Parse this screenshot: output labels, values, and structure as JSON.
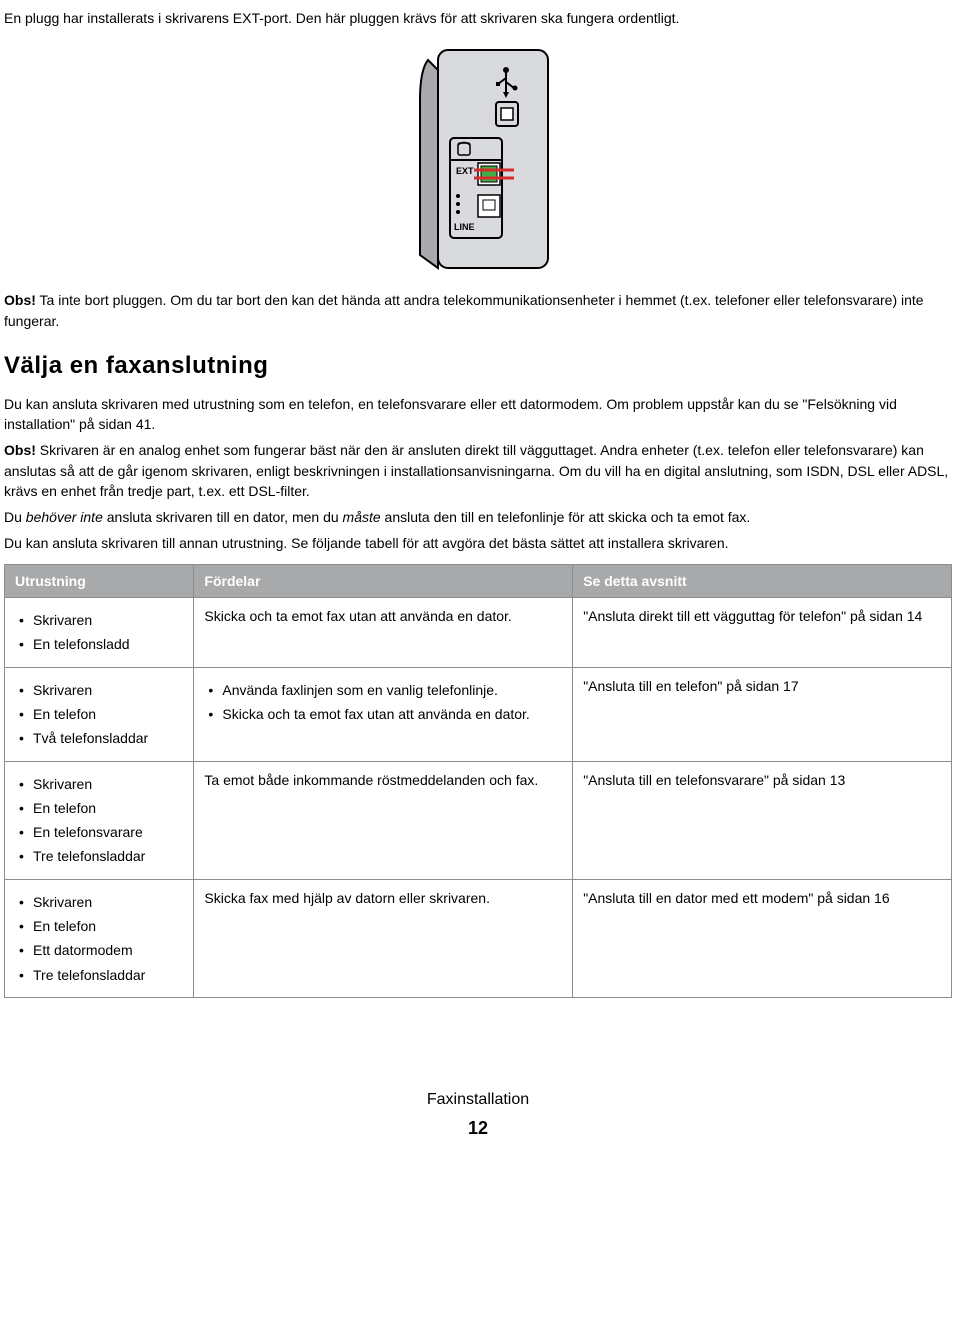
{
  "intro_text": "En plugg har installerats i skrivarens EXT-port. Den här pluggen krävs för att skrivaren ska fungera ordentligt.",
  "note1_prefix": "Obs!",
  "note1_text": " Ta inte bort pluggen. Om du tar bort den kan det hända att andra telekommunikationsenheter i hemmet (t.ex. telefoner eller telefonsvarare) inte fungerar.",
  "heading": "Välja en faxanslutning",
  "para1": "Du kan ansluta skrivaren med utrustning som en telefon, en telefonsvarare eller ett datormodem. Om problem uppstår kan du se \"Felsökning vid installation\" på sidan 41.",
  "note2_prefix": "Obs!",
  "note2_text": " Skrivaren är en analog enhet som fungerar bäst när den är ansluten direkt till vägguttaget. Andra enheter (t.ex. telefon eller telefonsvarare) kan anslutas så att de går igenom skrivaren, enligt beskrivningen i installationsanvisningarna. Om du vill ha en digital anslutning, som ISDN, DSL eller ADSL, krävs en enhet från tredje part, t.ex. ett DSL-filter.",
  "para2_pre": "Du ",
  "para2_em1": "behöver inte",
  "para2_mid": " ansluta skrivaren till en dator, men du ",
  "para2_em2": "måste",
  "para2_post": " ansluta den till en telefonlinje för att skicka och ta emot fax.",
  "para3": "Du kan ansluta skrivaren till annan utrustning. Se följande tabell för att avgöra det bästa sättet att installera skrivaren.",
  "table": {
    "headers": [
      "Utrustning",
      "Fördelar",
      "Se detta avsnitt"
    ],
    "rows": [
      {
        "equipment": [
          "Skrivaren",
          "En telefonsladd"
        ],
        "benefits_text": "Skicka och ta emot fax utan att använda en dator.",
        "benefits_list": null,
        "section": "\"Ansluta direkt till ett vägguttag för telefon\" på sidan 14"
      },
      {
        "equipment": [
          "Skrivaren",
          "En telefon",
          "Två telefonsladdar"
        ],
        "benefits_text": null,
        "benefits_list": [
          "Använda faxlinjen som en vanlig telefonlinje.",
          "Skicka och ta emot fax utan att använda en dator."
        ],
        "section": "\"Ansluta till en telefon\" på sidan 17"
      },
      {
        "equipment": [
          "Skrivaren",
          "En telefon",
          "En telefonsvarare",
          "Tre telefonsladdar"
        ],
        "benefits_text": "Ta emot både inkommande röstmeddelanden och fax.",
        "benefits_list": null,
        "section": "\"Ansluta till en telefonsvarare\" på sidan 13"
      },
      {
        "equipment": [
          "Skrivaren",
          "En telefon",
          "Ett datormodem",
          "Tre telefonsladdar"
        ],
        "benefits_text": "Skicka fax med hjälp av datorn eller skrivaren.",
        "benefits_list": null,
        "section": "\"Ansluta till en dator med ett modem\" på sidan 16"
      }
    ]
  },
  "footer_title": "Faxinstallation",
  "footer_page": "12",
  "illustration": {
    "panel_fill": "#d9dadd",
    "panel_stroke": "#000",
    "port_fill": "#fff",
    "plug_green": "#3fae49",
    "plug_red": "#d82c2c"
  }
}
